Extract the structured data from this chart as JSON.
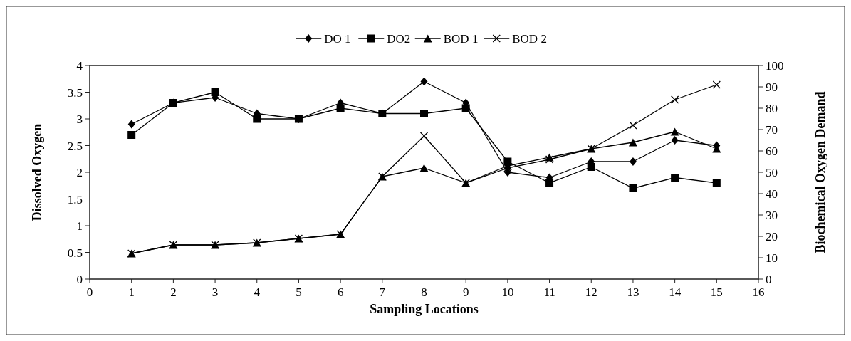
{
  "chart_data": {
    "type": "line",
    "xlabel": "Sampling Locations",
    "ylabel": "Dissolved Oxygen",
    "y2label": "Biochemical Oxygen Demand",
    "x": [
      1,
      2,
      3,
      4,
      5,
      6,
      7,
      8,
      9,
      10,
      11,
      12,
      13,
      14,
      15
    ],
    "xlim": [
      0,
      16
    ],
    "xticks": [
      0,
      1,
      2,
      3,
      4,
      5,
      6,
      7,
      8,
      9,
      10,
      11,
      12,
      13,
      14,
      15,
      16
    ],
    "ylim": [
      0,
      4
    ],
    "yticks": [
      0,
      0.5,
      1,
      1.5,
      2,
      2.5,
      3,
      3.5,
      4
    ],
    "y2lim": [
      0,
      100
    ],
    "y2ticks": [
      0,
      10,
      20,
      30,
      40,
      50,
      60,
      70,
      80,
      90,
      100
    ],
    "grid": false,
    "legend": "top",
    "line_style": "solid",
    "series": [
      {
        "name": "DO 1",
        "color": "#000000",
        "marker": "diamond",
        "values": [
          2.9,
          3.3,
          3.4,
          3.1,
          3.0,
          3.3,
          3.1,
          3.7,
          3.3,
          2.0,
          1.9,
          2.2,
          2.2,
          2.6,
          2.5
        ]
      },
      {
        "name": "DO2",
        "color": "#000000",
        "marker": "square",
        "values": [
          2.7,
          3.3,
          3.5,
          3.0,
          3.0,
          3.2,
          3.1,
          3.1,
          3.2,
          2.2,
          1.8,
          2.1,
          1.7,
          1.9,
          1.8
        ]
      },
      {
        "name": "BOD 1",
        "color": "#000000",
        "marker": "triangle",
        "axis": "y2",
        "values": [
          12,
          16,
          16,
          17,
          19,
          21,
          48,
          52,
          45,
          53,
          57,
          61,
          64,
          69,
          61
        ]
      },
      {
        "name": "BOD 2",
        "color": "#000000",
        "marker": "cross",
        "axis": "y2",
        "values": [
          12,
          16,
          16,
          17,
          19,
          21,
          48,
          67,
          45,
          52,
          56,
          61,
          72,
          84,
          91
        ]
      }
    ]
  }
}
